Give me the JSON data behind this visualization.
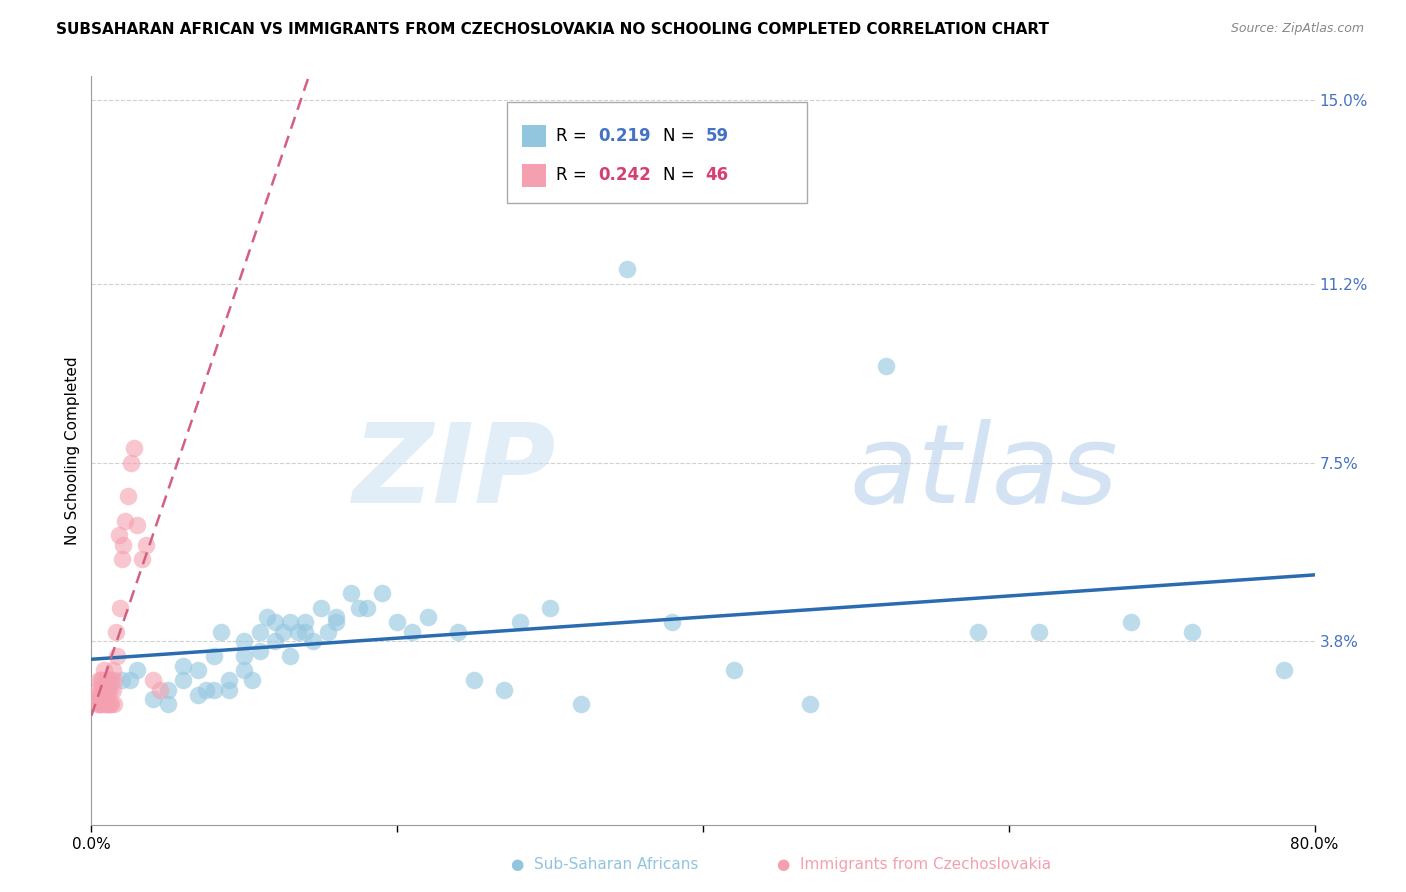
{
  "title": "SUBSAHARAN AFRICAN VS IMMIGRANTS FROM CZECHOSLOVAKIA NO SCHOOLING COMPLETED CORRELATION CHART",
  "source": "Source: ZipAtlas.com",
  "ylabel": "No Schooling Completed",
  "xmin": 0.0,
  "xmax": 0.8,
  "ymin": 0.0,
  "ymax": 0.155,
  "right_ytick_vals": [
    0.038,
    0.075,
    0.112,
    0.15
  ],
  "right_yticklabels": [
    "3.8%",
    "7.5%",
    "11.2%",
    "15.0%"
  ],
  "legend_blue_R": "0.219",
  "legend_blue_N": "59",
  "legend_pink_R": "0.242",
  "legend_pink_N": "46",
  "legend_label_blue": "Sub-Saharan Africans",
  "legend_label_pink": "Immigrants from Czechoslovakia",
  "blue_color": "#92c5de",
  "pink_color": "#f4a0b0",
  "blue_line_color": "#2b6cb0",
  "pink_line_color": "#d46080",
  "grid_color": "#cccccc",
  "title_fontsize": 11,
  "blue_scatter_x": [
    0.02,
    0.025,
    0.03,
    0.04,
    0.05,
    0.05,
    0.06,
    0.06,
    0.07,
    0.07,
    0.075,
    0.08,
    0.08,
    0.085,
    0.09,
    0.09,
    0.1,
    0.1,
    0.1,
    0.105,
    0.11,
    0.11,
    0.115,
    0.12,
    0.12,
    0.125,
    0.13,
    0.13,
    0.135,
    0.14,
    0.14,
    0.145,
    0.15,
    0.155,
    0.16,
    0.16,
    0.17,
    0.175,
    0.18,
    0.19,
    0.2,
    0.21,
    0.22,
    0.24,
    0.25,
    0.27,
    0.28,
    0.3,
    0.32,
    0.35,
    0.38,
    0.42,
    0.47,
    0.52,
    0.58,
    0.62,
    0.68,
    0.72,
    0.78
  ],
  "blue_scatter_y": [
    0.03,
    0.03,
    0.032,
    0.026,
    0.028,
    0.025,
    0.03,
    0.033,
    0.032,
    0.027,
    0.028,
    0.035,
    0.028,
    0.04,
    0.03,
    0.028,
    0.038,
    0.032,
    0.035,
    0.03,
    0.04,
    0.036,
    0.043,
    0.038,
    0.042,
    0.04,
    0.042,
    0.035,
    0.04,
    0.04,
    0.042,
    0.038,
    0.045,
    0.04,
    0.043,
    0.042,
    0.048,
    0.045,
    0.045,
    0.048,
    0.042,
    0.04,
    0.043,
    0.04,
    0.03,
    0.028,
    0.042,
    0.045,
    0.025,
    0.115,
    0.042,
    0.032,
    0.025,
    0.095,
    0.04,
    0.04,
    0.042,
    0.04,
    0.032
  ],
  "pink_scatter_x": [
    0.003,
    0.004,
    0.004,
    0.005,
    0.005,
    0.005,
    0.006,
    0.006,
    0.006,
    0.007,
    0.007,
    0.007,
    0.008,
    0.008,
    0.008,
    0.009,
    0.009,
    0.01,
    0.01,
    0.01,
    0.011,
    0.011,
    0.011,
    0.012,
    0.012,
    0.013,
    0.013,
    0.014,
    0.014,
    0.015,
    0.015,
    0.016,
    0.017,
    0.018,
    0.019,
    0.02,
    0.021,
    0.022,
    0.024,
    0.026,
    0.028,
    0.03,
    0.033,
    0.036,
    0.04,
    0.045
  ],
  "pink_scatter_y": [
    0.027,
    0.025,
    0.028,
    0.03,
    0.026,
    0.025,
    0.027,
    0.03,
    0.025,
    0.028,
    0.025,
    0.03,
    0.027,
    0.032,
    0.028,
    0.03,
    0.025,
    0.028,
    0.03,
    0.025,
    0.03,
    0.025,
    0.028,
    0.025,
    0.028,
    0.03,
    0.025,
    0.028,
    0.032,
    0.03,
    0.025,
    0.04,
    0.035,
    0.06,
    0.045,
    0.055,
    0.058,
    0.063,
    0.068,
    0.075,
    0.078,
    0.062,
    0.055,
    0.058,
    0.03,
    0.028
  ]
}
